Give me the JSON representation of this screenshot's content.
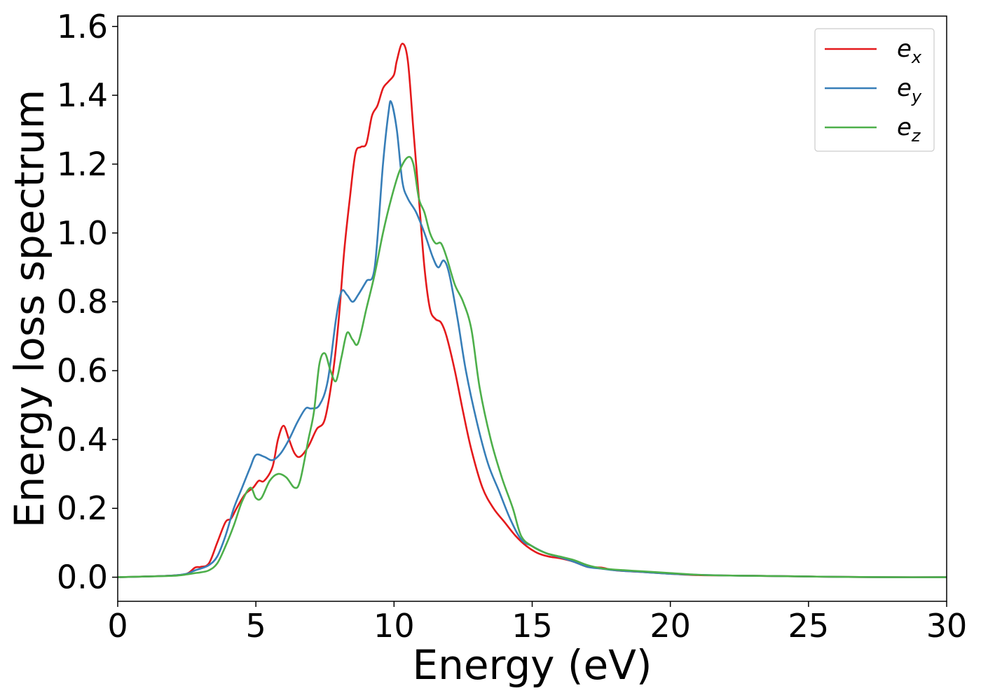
{
  "chart_data": {
    "type": "line",
    "xlabel": "Energy (eV)",
    "ylabel": "Energy loss spectrum",
    "xlim": [
      0,
      30
    ],
    "ylim": [
      -0.07,
      1.63
    ],
    "xticks": [
      0,
      5,
      10,
      15,
      20,
      25,
      30
    ],
    "xtick_labels": [
      "0",
      "5",
      "10",
      "15",
      "20",
      "25",
      "30"
    ],
    "yticks": [
      0.0,
      0.2,
      0.4,
      0.6,
      0.8,
      1.0,
      1.2,
      1.4,
      1.6
    ],
    "ytick_labels": [
      "0.0",
      "0.2",
      "0.4",
      "0.6",
      "0.8",
      "1.0",
      "1.2",
      "1.4",
      "1.6"
    ],
    "grid": false,
    "legend_position": "top-right",
    "series": [
      {
        "name": "e_x",
        "label_base": "e",
        "label_sub": "x",
        "color": "#e41a1c",
        "x": [
          0,
          1,
          2,
          2.5,
          2.8,
          3.0,
          3.3,
          3.6,
          3.9,
          4.1,
          4.3,
          4.6,
          4.9,
          5.1,
          5.3,
          5.6,
          5.8,
          6.0,
          6.2,
          6.4,
          6.6,
          6.9,
          7.2,
          7.5,
          7.8,
          8.0,
          8.2,
          8.4,
          8.6,
          8.8,
          9.0,
          9.2,
          9.4,
          9.6,
          9.8,
          10.0,
          10.1,
          10.3,
          10.5,
          10.7,
          10.9,
          11.1,
          11.3,
          11.5,
          11.7,
          11.9,
          12.2,
          12.5,
          12.8,
          13.2,
          13.6,
          14.0,
          14.4,
          14.8,
          15.2,
          15.6,
          16.0,
          16.5,
          17.0,
          17.5,
          18.0,
          19.0,
          20.0,
          21.0,
          22.0,
          23.0,
          24.0,
          25.0,
          26.0,
          28.0,
          30.0
        ],
        "y": [
          0,
          0.002,
          0.005,
          0.01,
          0.028,
          0.03,
          0.04,
          0.1,
          0.16,
          0.17,
          0.2,
          0.24,
          0.26,
          0.28,
          0.28,
          0.32,
          0.4,
          0.44,
          0.4,
          0.36,
          0.35,
          0.38,
          0.43,
          0.46,
          0.6,
          0.75,
          0.95,
          1.1,
          1.23,
          1.25,
          1.26,
          1.34,
          1.37,
          1.42,
          1.44,
          1.46,
          1.5,
          1.55,
          1.5,
          1.3,
          1.1,
          0.9,
          0.78,
          0.75,
          0.74,
          0.7,
          0.6,
          0.48,
          0.37,
          0.26,
          0.2,
          0.16,
          0.12,
          0.09,
          0.07,
          0.06,
          0.055,
          0.045,
          0.03,
          0.028,
          0.02,
          0.015,
          0.01,
          0.006,
          0.005,
          0.004,
          0.003,
          0.002,
          0.001,
          0.0,
          0.0
        ]
      },
      {
        "name": "e_y",
        "label_base": "e",
        "label_sub": "y",
        "color": "#377eb8",
        "x": [
          0,
          1,
          2,
          2.5,
          2.8,
          3.0,
          3.3,
          3.6,
          3.9,
          4.2,
          4.5,
          4.8,
          5.0,
          5.3,
          5.6,
          5.9,
          6.2,
          6.5,
          6.8,
          7.0,
          7.3,
          7.6,
          7.9,
          8.1,
          8.3,
          8.5,
          8.7,
          9.0,
          9.3,
          9.6,
          9.8,
          9.9,
          10.1,
          10.3,
          10.5,
          10.8,
          11.1,
          11.4,
          11.6,
          11.8,
          12.0,
          12.3,
          12.6,
          13.0,
          13.4,
          13.8,
          14.2,
          14.6,
          15.0,
          15.5,
          16.0,
          16.5,
          17.0,
          17.5,
          18.0,
          19.0,
          20.0,
          21.0,
          22.0,
          23.0,
          24.0,
          25.0,
          26.0,
          28.0,
          30.0
        ],
        "y": [
          0,
          0.002,
          0.005,
          0.01,
          0.02,
          0.025,
          0.035,
          0.06,
          0.12,
          0.2,
          0.26,
          0.32,
          0.355,
          0.35,
          0.34,
          0.36,
          0.4,
          0.45,
          0.49,
          0.49,
          0.5,
          0.57,
          0.75,
          0.83,
          0.82,
          0.8,
          0.82,
          0.86,
          0.9,
          1.2,
          1.35,
          1.38,
          1.3,
          1.15,
          1.1,
          1.06,
          1.0,
          0.93,
          0.9,
          0.92,
          0.88,
          0.75,
          0.6,
          0.45,
          0.33,
          0.25,
          0.17,
          0.11,
          0.09,
          0.07,
          0.058,
          0.045,
          0.03,
          0.025,
          0.02,
          0.015,
          0.01,
          0.007,
          0.005,
          0.004,
          0.003,
          0.002,
          0.001,
          0.0,
          0.0
        ]
      },
      {
        "name": "e_z",
        "label_base": "e",
        "label_sub": "z",
        "color": "#4daf4a",
        "x": [
          0,
          1,
          2,
          2.5,
          2.8,
          3.0,
          3.3,
          3.6,
          3.9,
          4.2,
          4.5,
          4.8,
          5.0,
          5.2,
          5.5,
          5.8,
          6.1,
          6.4,
          6.6,
          6.9,
          7.1,
          7.3,
          7.5,
          7.7,
          7.9,
          8.1,
          8.3,
          8.5,
          8.7,
          9.0,
          9.3,
          9.6,
          9.9,
          10.2,
          10.5,
          10.7,
          10.9,
          11.1,
          11.3,
          11.5,
          11.7,
          11.9,
          12.2,
          12.5,
          12.8,
          13.1,
          13.5,
          13.9,
          14.3,
          14.6,
          15.0,
          15.5,
          16.0,
          16.5,
          17.0,
          17.5,
          18.0,
          19.0,
          20.0,
          21.0,
          22.0,
          23.0,
          24.0,
          25.0,
          26.0,
          28.0,
          30.0
        ],
        "y": [
          0,
          0.002,
          0.004,
          0.008,
          0.012,
          0.014,
          0.02,
          0.04,
          0.09,
          0.15,
          0.22,
          0.26,
          0.23,
          0.23,
          0.28,
          0.3,
          0.29,
          0.26,
          0.28,
          0.4,
          0.48,
          0.62,
          0.65,
          0.6,
          0.57,
          0.64,
          0.71,
          0.69,
          0.68,
          0.78,
          0.88,
          1.0,
          1.1,
          1.18,
          1.22,
          1.2,
          1.1,
          1.06,
          1.0,
          0.97,
          0.97,
          0.93,
          0.85,
          0.8,
          0.72,
          0.55,
          0.4,
          0.29,
          0.2,
          0.12,
          0.09,
          0.07,
          0.06,
          0.05,
          0.035,
          0.026,
          0.022,
          0.017,
          0.012,
          0.007,
          0.005,
          0.004,
          0.003,
          0.002,
          0.001,
          0.0,
          0.0
        ]
      }
    ]
  }
}
